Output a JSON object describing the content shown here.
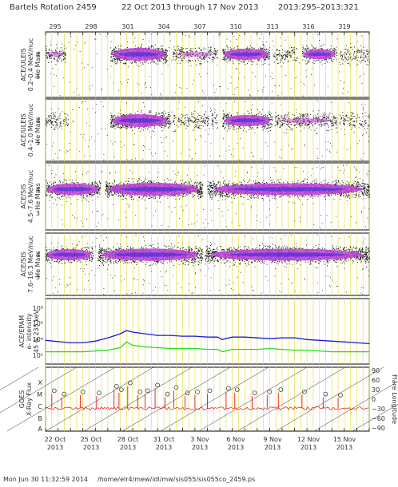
{
  "header": {
    "title": "Bartels Rotation 2459",
    "date_range": "22 Oct 2013 through 17 Nov 2013",
    "doy_range": "2013:295–2013:321"
  },
  "footer": {
    "timestamp": "Mon Jun 30 11:32:59 2014",
    "path": "/home/elr4/mew/idl/mw/sis055/sis055co_2459.ps"
  },
  "colors": {
    "marker_lines": "#e8e050",
    "density_high": "#c040e0",
    "density_core": "#3030d0",
    "blue_series": "#1a1ad8",
    "green_series": "#22dd22",
    "xray": "#ee1111"
  },
  "chart_data": [
    {
      "type": "scatter",
      "panel": "ace-ulels-low",
      "ylabel": [
        "ACE/ULEIS",
        "0.2–0.4 MeV/nuc",
        "He Mass"
      ],
      "yticks": [
        "4",
        "3"
      ],
      "top_xticks": [
        "295",
        "298",
        "301",
        "304",
        "307",
        "310",
        "313",
        "316",
        "319"
      ],
      "bands": [
        {
          "start": 295.0,
          "end": 296.6,
          "level": 4.0,
          "density": 0.5
        },
        {
          "start": 300.2,
          "end": 304.8,
          "level": 4.0,
          "density": 1.0
        },
        {
          "start": 305.2,
          "end": 308.8,
          "level": 4.0,
          "density": 0.45
        },
        {
          "start": 309.2,
          "end": 313.0,
          "level": 4.0,
          "density": 0.75
        },
        {
          "start": 313.3,
          "end": 315.2,
          "level": 4.0,
          "density": 0.4
        },
        {
          "start": 315.6,
          "end": 318.4,
          "level": 4.0,
          "density": 0.6
        },
        {
          "start": 318.6,
          "end": 321.0,
          "level": 4.0,
          "density": 0.35
        }
      ]
    },
    {
      "type": "scatter",
      "panel": "ace-ulels-high",
      "ylabel": [
        "ACE/ULEIS",
        "0.4–1.0 MeV/nuc",
        "He Mass"
      ],
      "yticks": [
        "4",
        "3"
      ],
      "bands": [
        {
          "start": 295.0,
          "end": 296.8,
          "level": 4.0,
          "density": 0.4
        },
        {
          "start": 300.2,
          "end": 305.0,
          "level": 4.0,
          "density": 1.0
        },
        {
          "start": 305.2,
          "end": 308.8,
          "level": 4.0,
          "density": 0.35
        },
        {
          "start": 309.2,
          "end": 313.2,
          "level": 4.0,
          "density": 0.75
        },
        {
          "start": 313.4,
          "end": 318.4,
          "level": 4.0,
          "density": 0.5
        },
        {
          "start": 318.6,
          "end": 321.0,
          "level": 4.0,
          "density": 0.3
        }
      ]
    },
    {
      "type": "scatter",
      "panel": "ace-sis-low",
      "ylabel": [
        "ACE/SIS",
        "4.5–7.6 MeV/nuc",
        "He Mass"
      ],
      "yticks": [
        "4",
        "3"
      ],
      "bands": [
        {
          "start": 295.0,
          "end": 299.4,
          "level": 4.0,
          "density": 0.8
        },
        {
          "start": 299.8,
          "end": 307.6,
          "level": 4.0,
          "density": 1.0
        },
        {
          "start": 308.0,
          "end": 321.0,
          "level": 4.0,
          "density": 0.85
        }
      ]
    },
    {
      "type": "scatter",
      "panel": "ace-sis-high",
      "ylabel": [
        "ACE/SIS",
        "7.6–16.3 MeV/nuc",
        "He Mass"
      ],
      "yticks": [
        "4",
        "3"
      ],
      "bands": [
        {
          "start": 295.0,
          "end": 298.8,
          "level": 4.0,
          "density": 0.75
        },
        {
          "start": 299.2,
          "end": 307.6,
          "level": 4.0,
          "density": 0.9
        },
        {
          "start": 307.8,
          "end": 321.0,
          "level": 4.0,
          "density": 0.85
        }
      ]
    },
    {
      "type": "line",
      "panel": "ace-epam",
      "ylabel": [
        "ACE/EPAM",
        "e- intensity",
        "45 & 235 keV"
      ],
      "yticks": [
        "10⁸",
        "10⁶",
        "10⁴",
        "10²"
      ],
      "ylim_log10": [
        1,
        9
      ],
      "x": [
        295,
        297,
        298,
        299,
        300,
        301,
        301.5,
        302,
        303,
        304,
        305,
        306,
        307,
        308,
        308.8,
        309.2,
        310,
        311,
        312,
        313,
        314,
        315,
        316,
        317,
        318,
        319,
        320,
        321
      ],
      "series": [
        {
          "color": "blue",
          "values": [
            3.9,
            3.6,
            3.6,
            3.8,
            4.2,
            4.7,
            5.1,
            4.9,
            4.7,
            4.5,
            4.5,
            4.4,
            4.4,
            4.3,
            4.3,
            4.0,
            4.3,
            4.3,
            4.2,
            4.1,
            4.2,
            4.2,
            4.0,
            3.9,
            3.8,
            3.7,
            3.6,
            3.5
          ]
        },
        {
          "color": "green",
          "values": [
            2.5,
            2.5,
            2.5,
            2.6,
            2.7,
            3.0,
            3.7,
            3.3,
            3.1,
            3.0,
            2.9,
            2.9,
            2.9,
            2.8,
            2.8,
            2.5,
            2.8,
            2.8,
            2.8,
            2.9,
            2.8,
            2.7,
            2.7,
            2.6,
            2.5,
            2.5,
            2.5,
            2.5
          ]
        }
      ]
    },
    {
      "type": "line",
      "panel": "goes",
      "ylabel": [
        "GOES",
        "X-Ray Flux"
      ],
      "yticks_left": [
        "X",
        "M",
        "C",
        "B",
        "A"
      ],
      "yticks_right": [
        "90",
        "60",
        "30",
        "0",
        "−30",
        "−60",
        "−90"
      ],
      "ylabel_right": "Flare Longitude",
      "flux_baseline_level": 1.6,
      "flare_peaks": [
        {
          "x": 295.5,
          "level": 2.9
        },
        {
          "x": 296.3,
          "level": 2.6
        },
        {
          "x": 297.8,
          "level": 2.8
        },
        {
          "x": 299.1,
          "level": 2.7
        },
        {
          "x": 300.5,
          "level": 3.3
        },
        {
          "x": 300.9,
          "level": 3.0
        },
        {
          "x": 301.6,
          "level": 3.6
        },
        {
          "x": 302.4,
          "level": 2.8
        },
        {
          "x": 303.0,
          "level": 2.9
        },
        {
          "x": 303.8,
          "level": 3.4
        },
        {
          "x": 304.6,
          "level": 2.6
        },
        {
          "x": 305.3,
          "level": 3.2
        },
        {
          "x": 306.2,
          "level": 2.7
        },
        {
          "x": 307.0,
          "level": 2.8
        },
        {
          "x": 308.0,
          "level": 2.9
        },
        {
          "x": 309.5,
          "level": 3.1
        },
        {
          "x": 310.2,
          "level": 3.0
        },
        {
          "x": 311.6,
          "level": 2.7
        },
        {
          "x": 312.8,
          "level": 2.8
        },
        {
          "x": 313.7,
          "level": 3.0
        },
        {
          "x": 315.6,
          "level": 2.8
        },
        {
          "x": 317.3,
          "level": 2.6
        },
        {
          "x": 318.5,
          "level": 2.5
        }
      ]
    }
  ],
  "xaxis": {
    "doy_start": 295,
    "doy_end": 321,
    "date_ticks": [
      {
        "doy": 295,
        "label": "22 Oct",
        "year": "2013"
      },
      {
        "doy": 298,
        "label": "25 Oct",
        "year": "2013"
      },
      {
        "doy": 301,
        "label": "28 Oct",
        "year": "2013"
      },
      {
        "doy": 304,
        "label": "31 Oct",
        "year": "2013"
      },
      {
        "doy": 307,
        "label": "3 Nov",
        "year": "2013"
      },
      {
        "doy": 310,
        "label": "6 Nov",
        "year": "2013"
      },
      {
        "doy": 313,
        "label": "9 Nov",
        "year": "2013"
      },
      {
        "doy": 316,
        "label": "12 Nov",
        "year": "2013"
      },
      {
        "doy": 319,
        "label": "15 Nov",
        "year": "2013"
      }
    ]
  }
}
